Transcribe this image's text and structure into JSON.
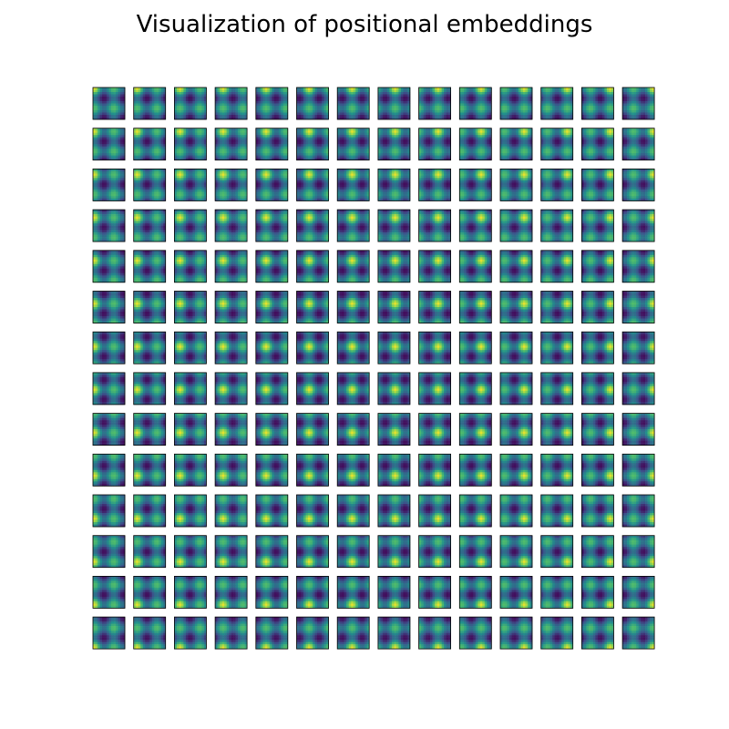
{
  "chart_data": {
    "type": "heatmap",
    "title": "Visualization of positional embeddings",
    "subplot_rows": 14,
    "subplot_cols": 14,
    "grid": false,
    "axes_ticks": false,
    "colormap": [
      "#440154",
      "#3b528b",
      "#21918c",
      "#5ec962",
      "#fde725"
    ],
    "cell_resolution": 14,
    "pattern": "cosine similarity of each patch position embedding to all 14x14 patch positions; bright row/column lines through the patch's own position",
    "value_range": [
      -1,
      1
    ]
  }
}
